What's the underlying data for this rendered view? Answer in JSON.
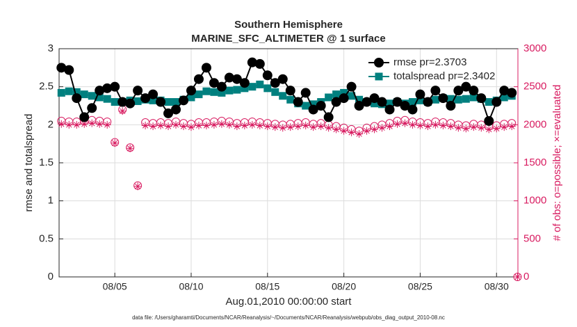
{
  "chart_data": {
    "type": "line",
    "title": "Southern Hemisphere",
    "subtitle": "MARINE_SFC_ALTIMETER @ 1 surface",
    "xlabel": "Aug.01,2010 00:00:00 start",
    "ylabel": "rmse and totalspread",
    "y2label": "# of obs: o=possible; ×=evaluated",
    "footnote": "data file: /Users/gharamti/Documents/NCAR/Reanalysis/~/Documents/NCAR/Reanalysis/webpub/obs_diag_output_2010-08.nc",
    "x": [
      0.5,
      1,
      1.5,
      2,
      2.5,
      3,
      3.5,
      4,
      4.5,
      5,
      5.5,
      6,
      6.5,
      7,
      7.5,
      8,
      8.5,
      9,
      9.5,
      10,
      10.5,
      11,
      11.5,
      12,
      12.5,
      13,
      13.5,
      14,
      14.5,
      15,
      15.5,
      16,
      16.5,
      17,
      17.5,
      18,
      18.5,
      19,
      19.5,
      20,
      20.5,
      21,
      21.5,
      22,
      22.5,
      23,
      23.5,
      24,
      24.5,
      25,
      25.5,
      26,
      26.5,
      27,
      27.5,
      28,
      28.5,
      29,
      29.5,
      30,
      30.375
    ],
    "series": [
      {
        "name": "rmse pr=2.3703",
        "color": "#000000",
        "marker": "circle",
        "values": [
          2.75,
          2.72,
          2.35,
          2.1,
          2.22,
          2.45,
          2.48,
          2.5,
          2.3,
          2.28,
          2.45,
          2.35,
          2.4,
          2.3,
          2.15,
          2.2,
          2.32,
          2.45,
          2.6,
          2.75,
          2.55,
          2.5,
          2.62,
          2.6,
          2.55,
          2.82,
          2.8,
          2.65,
          2.55,
          2.6,
          2.45,
          2.3,
          2.42,
          2.2,
          2.25,
          2.1,
          2.3,
          2.35,
          2.5,
          2.25,
          2.3,
          2.35,
          2.3,
          2.2,
          2.3,
          2.25,
          2.2,
          2.4,
          2.3,
          2.45,
          2.35,
          2.25,
          2.45,
          2.5,
          2.45,
          2.35,
          2.05,
          2.3,
          2.45,
          2.42,
          null
        ]
      },
      {
        "name": "totalspread pr=2.3402",
        "color": "#00807f",
        "marker": "square",
        "values": [
          2.42,
          2.44,
          2.43,
          2.4,
          2.38,
          2.36,
          2.34,
          2.3,
          2.3,
          2.32,
          2.31,
          2.33,
          2.32,
          2.32,
          2.3,
          2.3,
          2.33,
          2.36,
          2.4,
          2.44,
          2.43,
          2.42,
          2.45,
          2.46,
          2.48,
          2.5,
          2.53,
          2.48,
          2.43,
          2.38,
          2.33,
          2.28,
          2.25,
          2.27,
          2.3,
          2.36,
          2.4,
          2.42,
          2.38,
          2.33,
          2.3,
          2.28,
          2.27,
          2.28,
          2.3,
          2.28,
          2.3,
          2.32,
          2.3,
          2.33,
          2.35,
          2.34,
          2.33,
          2.34,
          2.36,
          2.34,
          2.3,
          2.32,
          2.36,
          2.38,
          null
        ]
      },
      {
        "color": "#d81b60",
        "marker": "open-circle",
        "axis": "y2",
        "values": [
          2050,
          2040,
          2040,
          2050,
          2060,
          2050,
          2040,
          1770,
          2200,
          1700,
          1200,
          2030,
          2020,
          2030,
          2020,
          2040,
          2020,
          2010,
          2030,
          2030,
          2040,
          2050,
          2040,
          2020,
          2030,
          2040,
          2030,
          2020,
          2010,
          2000,
          2010,
          2020,
          2030,
          2010,
          2020,
          2000,
          1980,
          1960,
          1940,
          1920,
          1960,
          1980,
          2000,
          2020,
          2050,
          2060,
          2040,
          2030,
          2020,
          2040,
          2030,
          2020,
          2000,
          1990,
          2010,
          2000,
          1980,
          1990,
          2010,
          2020,
          0
        ]
      },
      {
        "color": "#d81b60",
        "marker": "asterisk",
        "axis": "y2",
        "values": [
          2010,
          2000,
          2000,
          2010,
          2020,
          2010,
          2000,
          1760,
          2180,
          1690,
          1190,
          1990,
          1980,
          1990,
          1980,
          2000,
          1980,
          1970,
          1990,
          1990,
          2000,
          2010,
          2000,
          1980,
          1990,
          2000,
          1990,
          1980,
          1970,
          1960,
          1970,
          1980,
          1990,
          1970,
          1980,
          1960,
          1940,
          1920,
          1900,
          1880,
          1920,
          1940,
          1960,
          1980,
          2010,
          2020,
          2000,
          1990,
          1980,
          2000,
          1990,
          1980,
          1960,
          1950,
          1970,
          1960,
          1940,
          1950,
          1970,
          1980,
          0
        ]
      }
    ],
    "xlim": [
      0.35,
      30.4
    ],
    "xticks": [
      {
        "value": 4,
        "label": "08/05"
      },
      {
        "value": 9,
        "label": "08/10"
      },
      {
        "value": 14,
        "label": "08/15"
      },
      {
        "value": 19,
        "label": "08/20"
      },
      {
        "value": 24,
        "label": "08/25"
      },
      {
        "value": 29,
        "label": "08/30"
      }
    ],
    "ylim": [
      0,
      3
    ],
    "yticks": [
      0,
      0.5,
      1,
      1.5,
      2,
      2.5,
      3
    ],
    "y2lim": [
      0,
      3000
    ],
    "y2ticks": [
      0,
      500,
      1000,
      1500,
      2000,
      2500,
      3000
    ],
    "grid": true,
    "legend": "top-right"
  }
}
